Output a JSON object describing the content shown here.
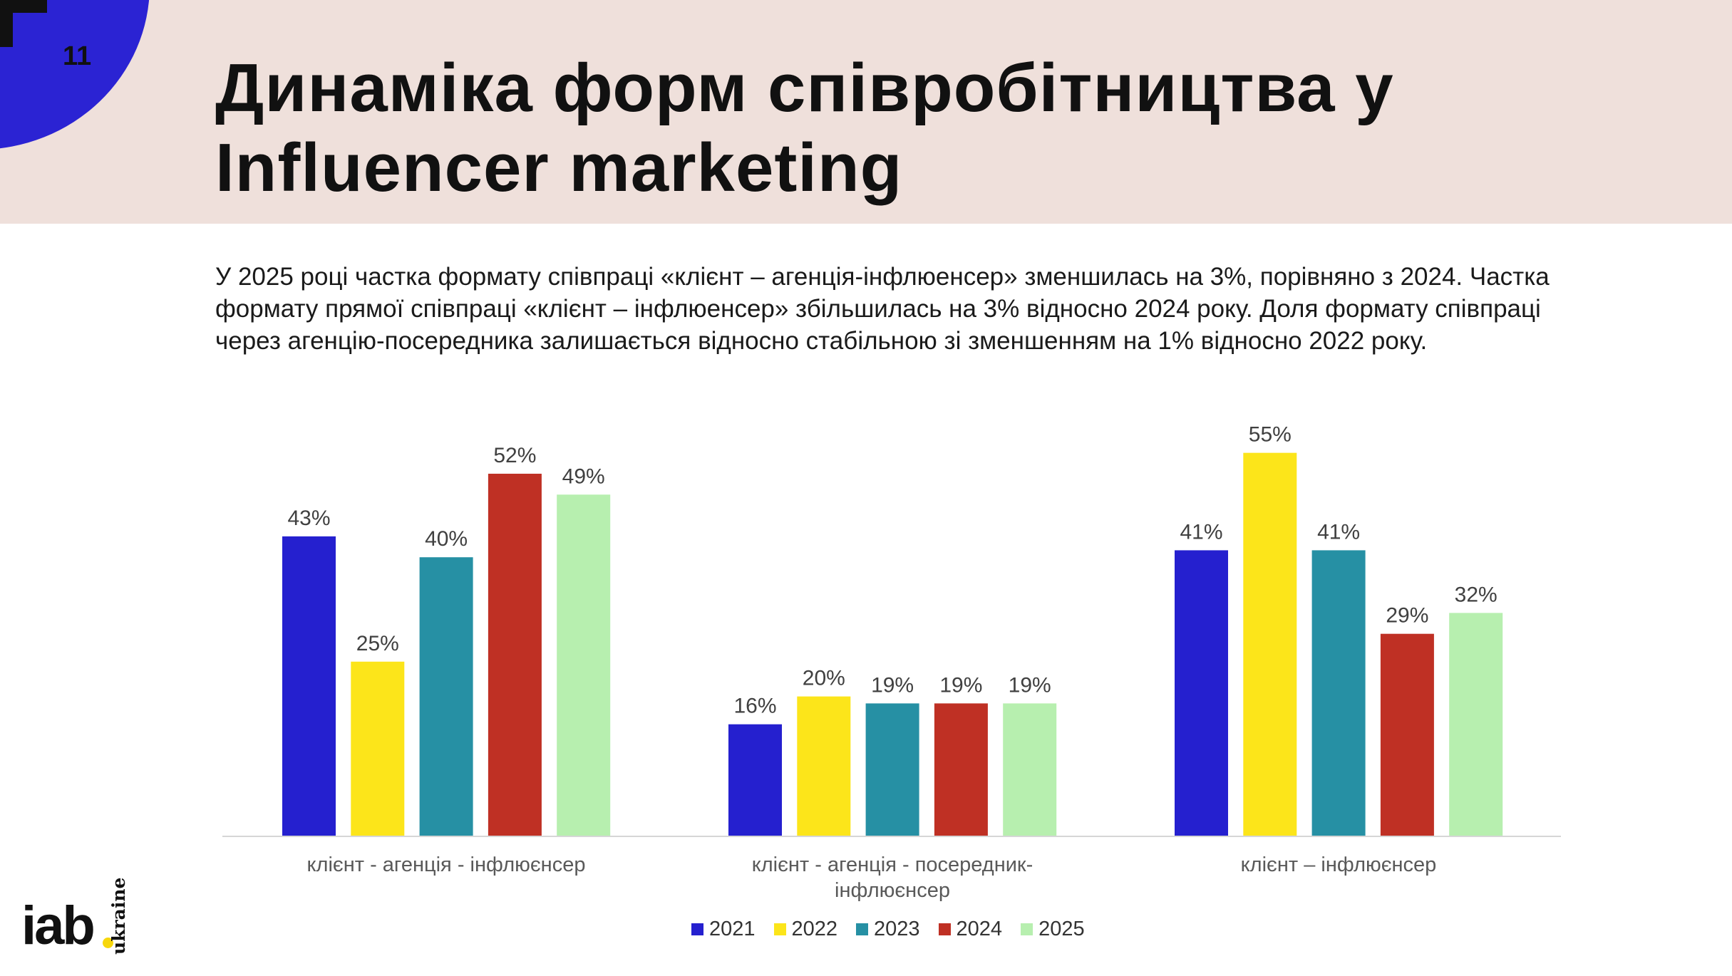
{
  "slide": {
    "page_number": "11",
    "title": "Динаміка форм співробітництва у Influencer marketing",
    "intro": "У 2025 році частка формату співпраці «клієнт – агенція-інфлюенсер» зменшилась на 3%, порівняно з 2024. Частка формату прямої співпраці «клієнт – інфлюенсер» збільшилась на 3% відносно 2024 року. Доля формату співпраці через агенцію-посередника залишається відносно стабільною зі зменшенням на 1% відносно 2022 року."
  },
  "logo": {
    "text": "iab",
    "subtext": "ukraine"
  },
  "colors": {
    "header_bg": "#efe0db",
    "accent_blue": "#2b23d3",
    "logo_dot": "#f7d70c"
  },
  "chart_data": {
    "type": "bar",
    "categories": [
      "клієнт - агенція - інфлюєнсер",
      "клієнт - агенція - посередник-інфлюєнсер",
      "клієнт – інфлюєнсер"
    ],
    "series": [
      {
        "name": "2021",
        "color": "#2520cf",
        "values": [
          43,
          16,
          41
        ]
      },
      {
        "name": "2022",
        "color": "#fce51a",
        "values": [
          25,
          20,
          55
        ]
      },
      {
        "name": "2023",
        "color": "#2690a4",
        "values": [
          40,
          19,
          41
        ]
      },
      {
        "name": "2024",
        "color": "#bf3024",
        "values": [
          52,
          19,
          29
        ]
      },
      {
        "name": "2025",
        "color": "#b7efaf",
        "values": [
          49,
          19,
          32
        ]
      }
    ],
    "value_suffix": "%",
    "ylim": [
      0,
      60
    ],
    "legend_position": "bottom",
    "grid": false
  }
}
